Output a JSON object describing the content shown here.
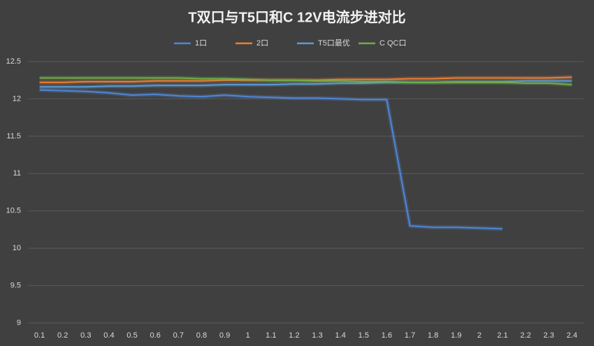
{
  "chart_data": {
    "type": "line",
    "title": "T双口与T5口和C 12V电流步进对比",
    "categories": [
      "0.1",
      "0.2",
      "0.3",
      "0.4",
      "0.5",
      "0.6",
      "0.7",
      "0.8",
      "0.9",
      "1",
      "1.1",
      "1.2",
      "1.3",
      "1.4",
      "1.5",
      "1.6",
      "1.7",
      "1.8",
      "1.9",
      "2",
      "2.1",
      "2.2",
      "2.3",
      "2.4"
    ],
    "series": [
      {
        "name": "1口",
        "color": "#4f86d6",
        "values": [
          12.12,
          12.11,
          12.1,
          12.08,
          12.05,
          12.06,
          12.04,
          12.03,
          12.05,
          12.03,
          12.02,
          12.01,
          12.01,
          12.0,
          11.99,
          11.99,
          10.3,
          10.28,
          10.28,
          10.27,
          10.26,
          null,
          null,
          null
        ]
      },
      {
        "name": "2口",
        "color": "#ed7d31",
        "values": [
          12.22,
          12.22,
          12.23,
          12.23,
          12.23,
          12.24,
          12.24,
          12.24,
          12.25,
          12.25,
          12.25,
          12.25,
          12.25,
          12.26,
          12.26,
          12.26,
          12.27,
          12.27,
          12.28,
          12.28,
          12.28,
          12.28,
          12.28,
          12.29
        ]
      },
      {
        "name": "T5口最优",
        "color": "#5b9bd5",
        "values": [
          12.16,
          12.16,
          12.16,
          12.17,
          12.17,
          12.18,
          12.18,
          12.18,
          12.19,
          12.19,
          12.19,
          12.2,
          12.2,
          12.21,
          12.21,
          12.22,
          12.22,
          12.22,
          12.23,
          12.23,
          12.23,
          12.24,
          12.24,
          12.24
        ]
      },
      {
        "name": "C QC口",
        "color": "#70ad47",
        "values": [
          12.28,
          12.28,
          12.28,
          12.28,
          12.28,
          12.28,
          12.28,
          12.27,
          12.27,
          12.26,
          12.25,
          12.25,
          12.24,
          12.24,
          12.23,
          12.23,
          12.22,
          12.22,
          12.22,
          12.22,
          12.22,
          12.21,
          12.21,
          12.19
        ]
      }
    ],
    "ylim": [
      9,
      12.5
    ],
    "yticks": [
      9,
      9.5,
      10,
      10.5,
      11,
      11.5,
      12,
      12.5
    ],
    "grid": true,
    "legend": "top"
  }
}
